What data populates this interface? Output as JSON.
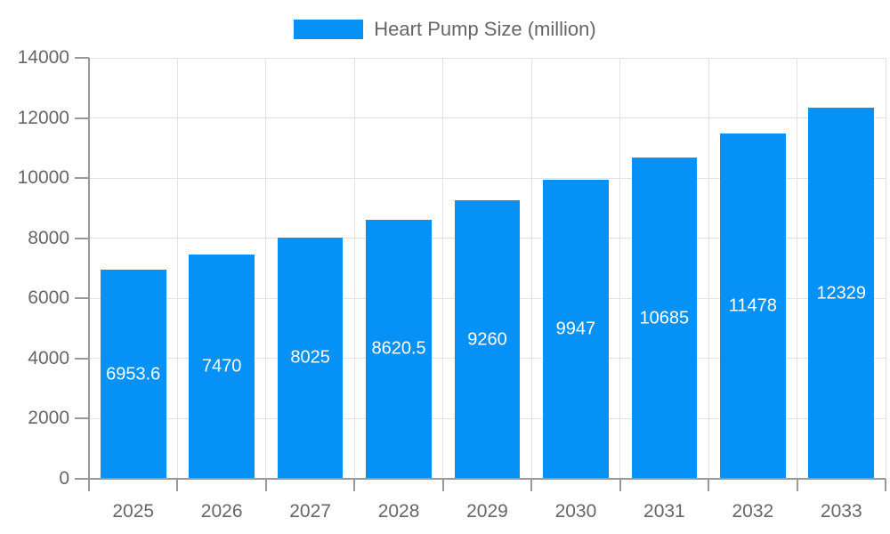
{
  "chart_data": {
    "type": "bar",
    "title": "Heart Pump Size (million)",
    "categories": [
      "2025",
      "2026",
      "2027",
      "2028",
      "2029",
      "2030",
      "2031",
      "2032",
      "2033"
    ],
    "series": [
      {
        "name": "Heart Pump Size (million)",
        "values": [
          6953.6,
          7470,
          8025,
          8620.5,
          9260,
          9947,
          10685,
          11478,
          12329
        ],
        "labels": [
          "6953.6",
          "7470",
          "8025",
          "8620.5",
          "9260",
          "9947",
          "10685",
          "11478",
          "12329"
        ]
      }
    ],
    "xlabel": "",
    "ylabel": "",
    "ylim": [
      0,
      14000
    ],
    "yticks": [
      0,
      2000,
      4000,
      6000,
      8000,
      10000,
      12000,
      14000
    ],
    "grid": true,
    "legend_position": "top-center",
    "bar_label_position": "center-inside"
  },
  "legend": {
    "label": "Heart Pump Size (million)"
  },
  "colors": {
    "bar": "#0591f5",
    "bar_label": "#ffffff",
    "axis_text": "#666666",
    "legend_text": "#666666",
    "grid_line": "#e3e3e3",
    "axis_line": "#999999",
    "background": "#ffffff"
  }
}
